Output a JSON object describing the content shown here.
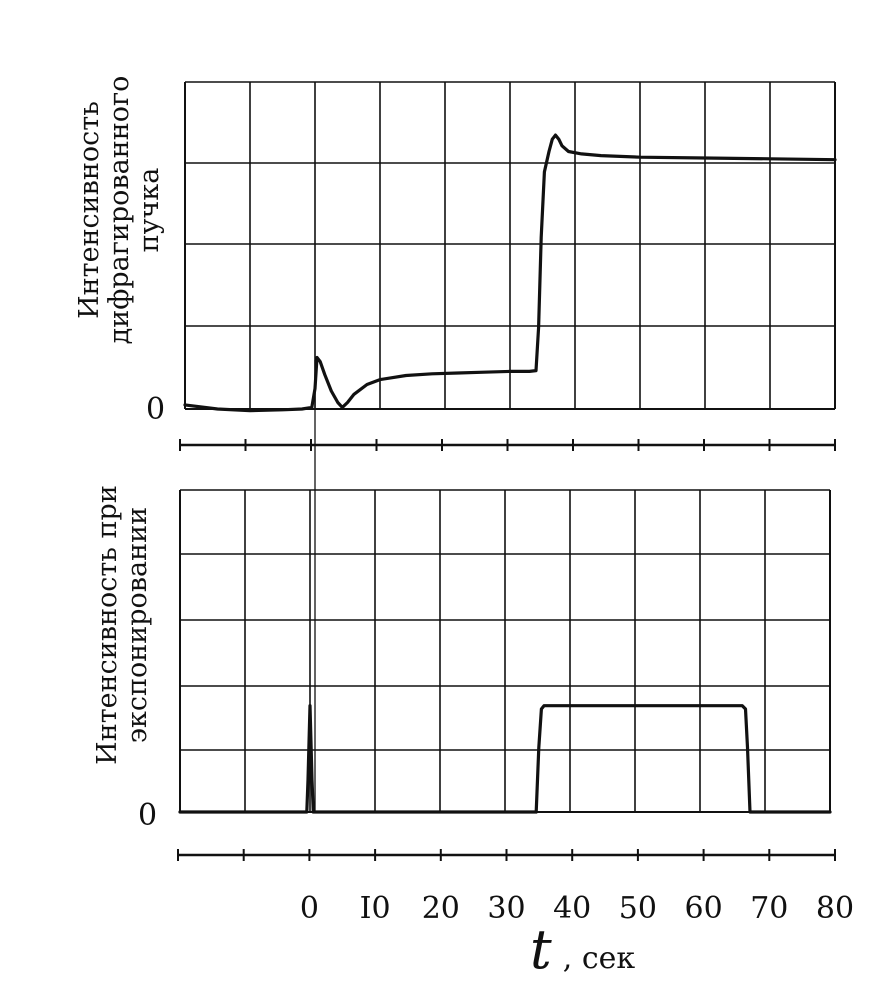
{
  "chart_data": [
    {
      "type": "line",
      "ylabel": [
        "Интенсивность",
        "дифрагированного",
        "пучка"
      ],
      "zero_label": "0",
      "xlim": [
        -20,
        80
      ],
      "ylim": [
        0,
        4
      ],
      "grid": true,
      "series": [
        {
          "x": [
            -20,
            -15,
            -10,
            -5,
            -2,
            -0.5,
            0,
            0.3,
            0.8,
            1.5,
            2.5,
            3.5,
            4.2,
            5,
            6,
            8,
            10,
            14,
            18,
            22,
            26,
            30,
            33,
            34,
            34.4,
            34.8,
            35.3,
            36,
            36.5,
            37,
            37.5,
            38,
            39,
            41,
            44,
            50,
            60,
            70,
            80
          ],
          "y": [
            0.05,
            0.0,
            -0.02,
            -0.01,
            0.0,
            0.02,
            0.25,
            0.63,
            0.58,
            0.42,
            0.22,
            0.08,
            0.02,
            0.08,
            0.18,
            0.3,
            0.36,
            0.41,
            0.43,
            0.44,
            0.45,
            0.46,
            0.46,
            0.47,
            1.0,
            2.1,
            2.9,
            3.15,
            3.3,
            3.35,
            3.3,
            3.22,
            3.15,
            3.12,
            3.1,
            3.08,
            3.07,
            3.06,
            3.05
          ]
        }
      ]
    },
    {
      "type": "line",
      "ylabel": [
        "Интенсивность при",
        "экспонировании"
      ],
      "zero_label": "0",
      "xlim": [
        -20,
        80
      ],
      "ylim": [
        0,
        5
      ],
      "grid": true,
      "series": [
        {
          "x": [
            -20,
            -0.5,
            -0.3,
            0,
            0.3,
            0.5,
            34.8,
            35.2,
            35.6,
            36,
            66.5,
            67,
            67.3,
            67.7,
            68,
            80
          ],
          "y": [
            0.0,
            0.0,
            0.5,
            1.65,
            0.5,
            0.0,
            0.0,
            1.0,
            1.6,
            1.65,
            1.65,
            1.6,
            1.0,
            0.0,
            0.0,
            0.0
          ]
        }
      ]
    }
  ],
  "x_axis": {
    "ticks": [
      -20,
      -10,
      0,
      10,
      20,
      30,
      40,
      50,
      60,
      70,
      80
    ],
    "tick_labels": [
      {
        "x": 0,
        "label": "0"
      },
      {
        "x": 10,
        "label": "I0"
      },
      {
        "x": 20,
        "label": "20"
      },
      {
        "x": 30,
        "label": "30"
      },
      {
        "x": 40,
        "label": "40"
      },
      {
        "x": 50,
        "label": "50"
      },
      {
        "x": 60,
        "label": "60"
      },
      {
        "x": 70,
        "label": "70"
      },
      {
        "x": 80,
        "label": "80"
      }
    ],
    "title_symbol": "t",
    "title_unit": ", сек"
  }
}
